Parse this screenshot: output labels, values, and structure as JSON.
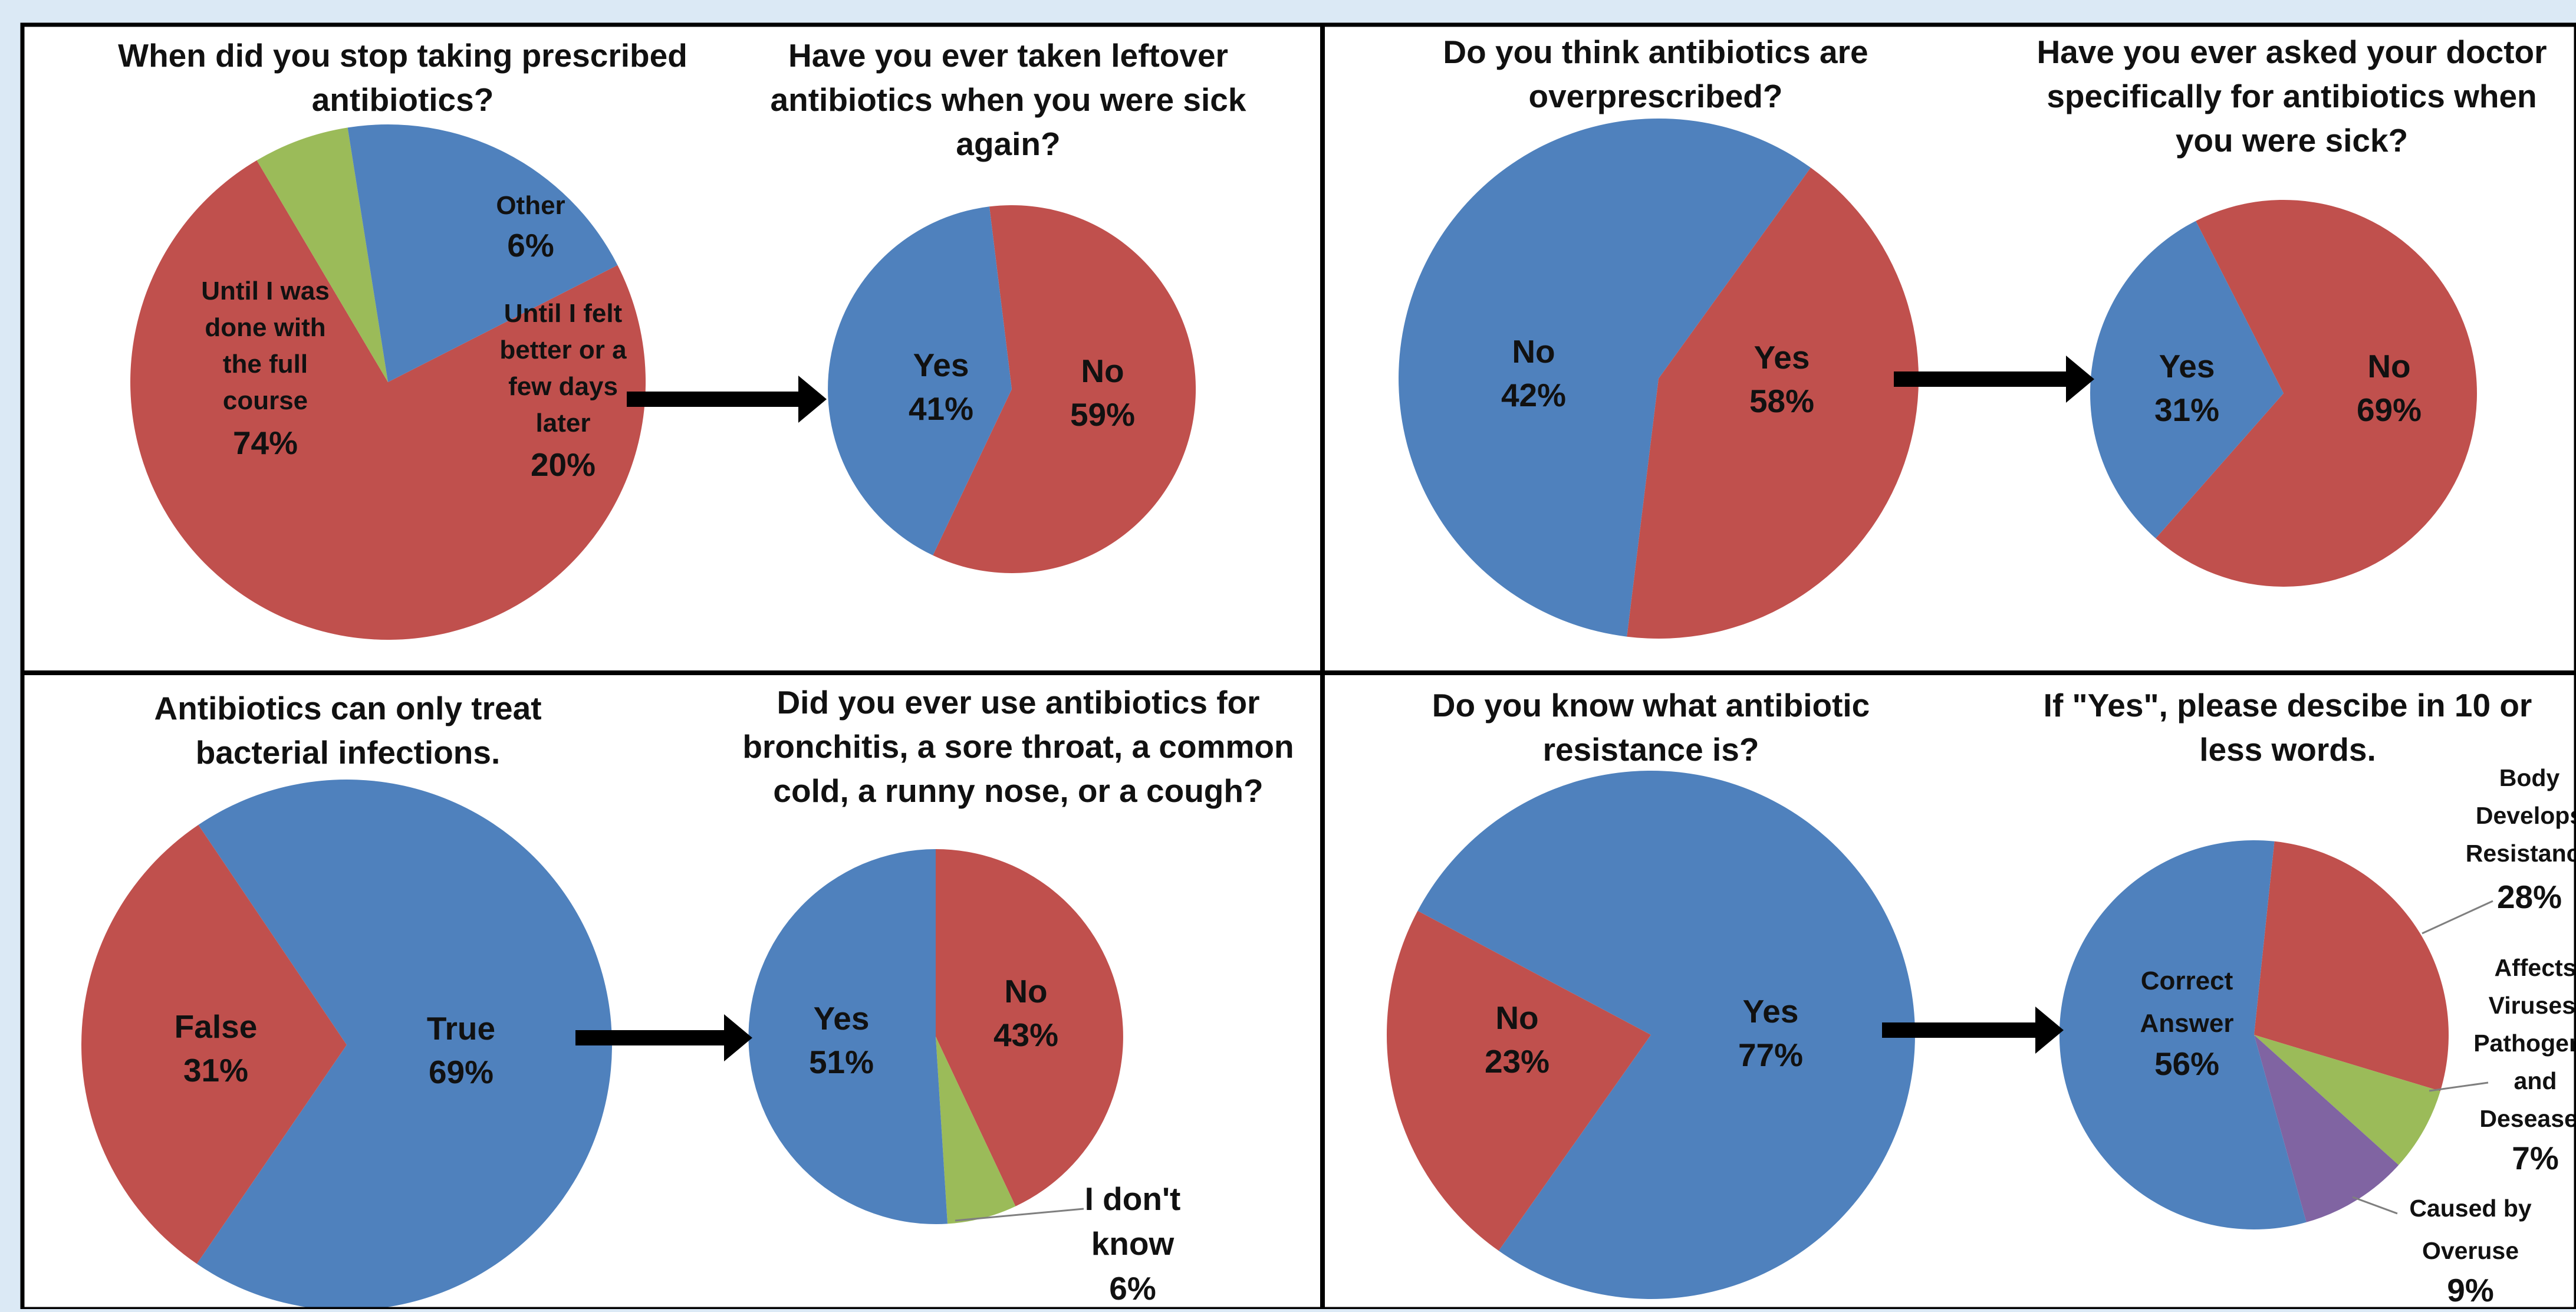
{
  "colors": {
    "blue": "#4f81bd",
    "red": "#c0504d",
    "green": "#9bbb59",
    "purple": "#8064a2",
    "panel_bg": "#ffffff",
    "page_bg": "#dbe9f5",
    "border": "#000000"
  },
  "chart_data": [
    {
      "type": "pie",
      "title": "When did you stop taking prescribed antibiotics?",
      "slices": [
        {
          "label": "Until I was done with the full course",
          "pct": "74%",
          "value": 74,
          "color": "red"
        },
        {
          "label": "Other",
          "pct": "6%",
          "value": 6,
          "color": "green"
        },
        {
          "label": "Until I felt better or a few days later",
          "pct": "20%",
          "value": 20,
          "color": "blue"
        }
      ]
    },
    {
      "type": "pie",
      "title": "Have you ever taken leftover antibiotics when you were sick again?",
      "slices": [
        {
          "label": "No",
          "pct": "59%",
          "value": 59,
          "color": "red"
        },
        {
          "label": "Yes",
          "pct": "41%",
          "value": 41,
          "color": "blue"
        }
      ]
    },
    {
      "type": "pie",
      "title": "Do you think antibiotics are overprescribed?",
      "slices": [
        {
          "label": "Yes",
          "pct": "58%",
          "value": 58,
          "color": "blue"
        },
        {
          "label": "No",
          "pct": "42%",
          "value": 42,
          "color": "red"
        }
      ]
    },
    {
      "type": "pie",
      "title": "Have you ever asked your doctor specifically for antibiotics when you were sick?",
      "slices": [
        {
          "label": "No",
          "pct": "69%",
          "value": 69,
          "color": "red"
        },
        {
          "label": "Yes",
          "pct": "31%",
          "value": 31,
          "color": "blue"
        }
      ]
    },
    {
      "type": "pie",
      "title": "Antibiotics can only treat bacterial infections.",
      "slices": [
        {
          "label": "True",
          "pct": "69%",
          "value": 69,
          "color": "blue"
        },
        {
          "label": "False",
          "pct": "31%",
          "value": 31,
          "color": "red"
        }
      ]
    },
    {
      "type": "pie",
      "title": "Did you ever use antibiotics for bronchitis, a sore throat, a common cold, a runny nose, or a cough?",
      "slices": [
        {
          "label": "No",
          "pct": "43%",
          "value": 43,
          "color": "red"
        },
        {
          "label": "I don't know",
          "pct": "6%",
          "value": 6,
          "color": "green"
        },
        {
          "label": "Yes",
          "pct": "51%",
          "value": 51,
          "color": "blue"
        }
      ]
    },
    {
      "type": "pie",
      "title": "Do you know what antibiotic resistance is?",
      "slices": [
        {
          "label": "Yes",
          "pct": "77%",
          "value": 77,
          "color": "blue"
        },
        {
          "label": "No",
          "pct": "23%",
          "value": 23,
          "color": "red"
        }
      ]
    },
    {
      "type": "pie",
      "title": "If \"Yes\", please descibe in 10 or less words.",
      "slices": [
        {
          "label": "Body Develops Resistance",
          "pct": "28%",
          "value": 28,
          "color": "red"
        },
        {
          "label": "Affects Viruses, Pathogens and Deseases",
          "pct": "7%",
          "value": 7,
          "color": "green"
        },
        {
          "label": "Caused by Overuse",
          "pct": "9%",
          "value": 9,
          "color": "purple"
        },
        {
          "label": "Correct Answer",
          "pct": "56%",
          "value": 56,
          "color": "blue"
        }
      ]
    }
  ]
}
